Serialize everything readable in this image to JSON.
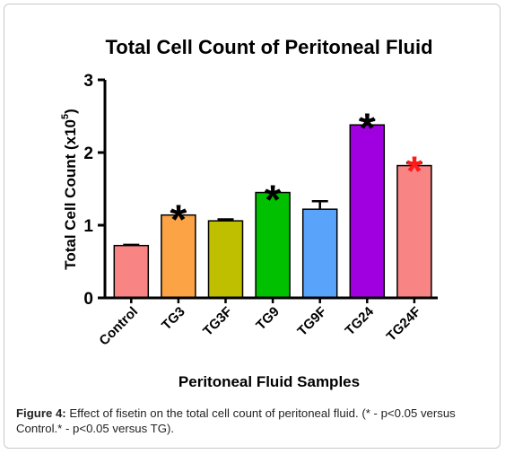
{
  "caption": {
    "label": "Figure 4:",
    "text": " Effect of fisetin on the total cell count of peritoneal fluid. (* - p<0.05 versus Control.* - p<0.05 versus TG)."
  },
  "chart_data": {
    "type": "bar",
    "title": "Total Cell Count of Peritoneal Fluid",
    "xlabel": "Peritoneal Fluid Samples",
    "ylabel_main": "Total Cell  Count (x10",
    "ylabel_sup": "5",
    "ylabel_close": ")",
    "ylim": [
      0,
      3
    ],
    "yticks": [
      0,
      1,
      2,
      3
    ],
    "grid": false,
    "categories": [
      "Control",
      "TG3",
      "TG3F",
      "TG9",
      "TG9F",
      "TG24",
      "TG24F"
    ],
    "values": [
      0.72,
      1.14,
      1.06,
      1.45,
      1.22,
      2.38,
      1.82
    ],
    "errors": [
      0.01,
      0.05,
      0.02,
      0.01,
      0.11,
      0.07,
      0.04
    ],
    "colors": [
      "#f98484",
      "#fba345",
      "#bfbf00",
      "#00c000",
      "#5aa3fb",
      "#a000e0",
      "#f98484"
    ],
    "markers": [
      "",
      "*",
      "",
      "*",
      "",
      "*",
      "*"
    ],
    "marker_colors": [
      "#000000",
      "#000000",
      "#000000",
      "#000000",
      "#000000",
      "#000000",
      "#ff1a1a"
    ]
  }
}
